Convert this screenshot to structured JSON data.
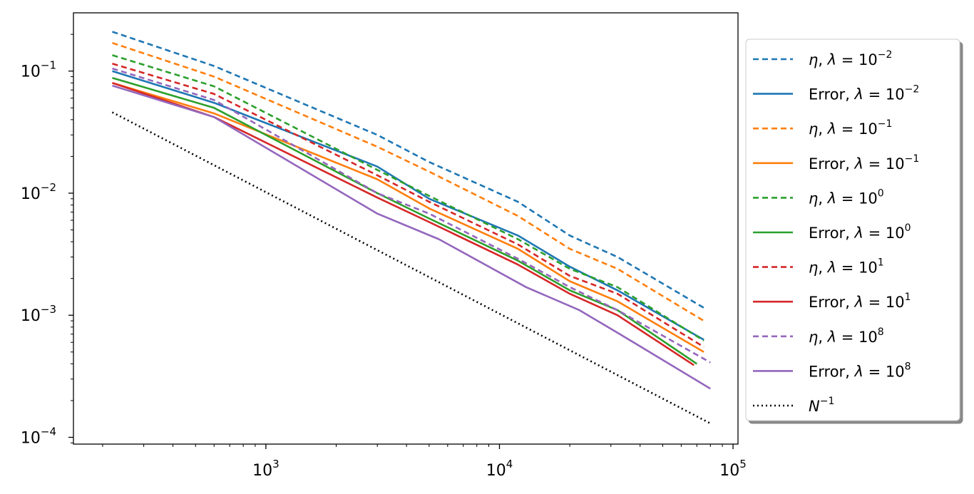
{
  "chart_data": {
    "type": "line",
    "title": "",
    "xlabel": "",
    "ylabel": "",
    "xscale": "log",
    "yscale": "log",
    "xlim": [
      150,
      105000
    ],
    "ylim": [
      8.8e-05,
      0.3
    ],
    "grid": false,
    "legend_position": "outside-right",
    "x_ticks": [
      {
        "value": 1000,
        "base": "10",
        "exp": "3"
      },
      {
        "value": 10000,
        "base": "10",
        "exp": "4"
      },
      {
        "value": 100000,
        "base": "10",
        "exp": "5"
      }
    ],
    "y_ticks": [
      {
        "value": 0.0001,
        "base": "10",
        "exp": "−4"
      },
      {
        "value": 0.001,
        "base": "10",
        "exp": "−3"
      },
      {
        "value": 0.01,
        "base": "10",
        "exp": "−2"
      },
      {
        "value": 0.1,
        "base": "10",
        "exp": "−1"
      }
    ],
    "series": [
      {
        "name": "η, λ = 10⁻²",
        "legend": {
          "prefix": "η",
          "exp": "−2"
        },
        "color": "#1f77b4",
        "style": "dashed",
        "x": [
          220,
          600,
          3000,
          5000,
          12000,
          20000,
          32000,
          75000
        ],
        "y": [
          0.21,
          0.11,
          0.03,
          0.018,
          0.0085,
          0.0045,
          0.003,
          0.00115
        ]
      },
      {
        "name": "Error, λ = 10⁻²",
        "legend": {
          "prefix": "Error",
          "exp": "−2"
        },
        "color": "#1f77b4",
        "style": "solid",
        "x": [
          220,
          600,
          3000,
          5000,
          12000,
          20000,
          32000,
          75000
        ],
        "y": [
          0.1,
          0.055,
          0.0165,
          0.009,
          0.0045,
          0.0025,
          0.0016,
          0.00063
        ]
      },
      {
        "name": "η, λ = 10⁻¹",
        "legend": {
          "prefix": "η",
          "exp": "−1"
        },
        "color": "#ff7f0e",
        "style": "dashed",
        "x": [
          220,
          600,
          3000,
          5000,
          12000,
          20000,
          32000,
          75000
        ],
        "y": [
          0.17,
          0.09,
          0.024,
          0.015,
          0.0065,
          0.0035,
          0.0024,
          0.0009
        ]
      },
      {
        "name": "Error, λ = 10⁻¹",
        "legend": {
          "prefix": "Error",
          "exp": "−1"
        },
        "color": "#ff7f0e",
        "style": "solid",
        "x": [
          220,
          600,
          3000,
          5000,
          12000,
          20000,
          32000,
          75000
        ],
        "y": [
          0.08,
          0.045,
          0.013,
          0.0075,
          0.0035,
          0.0019,
          0.0013,
          0.0005
        ]
      },
      {
        "name": "η, λ = 10⁰",
        "legend": {
          "prefix": "η",
          "exp": "0"
        },
        "color": "#2ca02c",
        "style": "dashed",
        "x": [
          220,
          600,
          3000,
          5000,
          12000,
          20000,
          32000,
          75000
        ],
        "y": [
          0.135,
          0.075,
          0.0155,
          0.0095,
          0.0042,
          0.0024,
          0.0017,
          0.00062
        ]
      },
      {
        "name": "Error, λ = 10⁰",
        "legend": {
          "prefix": "Error",
          "exp": "0"
        },
        "color": "#2ca02c",
        "style": "solid",
        "x": [
          220,
          600,
          3000,
          5000,
          12000,
          20000,
          32000,
          70000
        ],
        "y": [
          0.088,
          0.05,
          0.01,
          0.0062,
          0.0028,
          0.0016,
          0.0011,
          0.0004
        ]
      },
      {
        "name": "η, λ = 10¹",
        "legend": {
          "prefix": "η",
          "exp": "1"
        },
        "color": "#d62728",
        "style": "dashed",
        "x": [
          220,
          600,
          3000,
          5000,
          12000,
          20000,
          32000,
          75000
        ],
        "y": [
          0.115,
          0.065,
          0.014,
          0.0085,
          0.0038,
          0.0021,
          0.0015,
          0.00055
        ]
      },
      {
        "name": "Error, λ = 10¹",
        "legend": {
          "prefix": "Error",
          "exp": "1"
        },
        "color": "#d62728",
        "style": "solid",
        "x": [
          220,
          600,
          3000,
          5000,
          12000,
          20000,
          32000,
          68000
        ],
        "y": [
          0.08,
          0.042,
          0.0092,
          0.0058,
          0.0026,
          0.0015,
          0.001,
          0.00039
        ]
      },
      {
        "name": "η, λ = 10⁸",
        "legend": {
          "prefix": "η",
          "exp": "8"
        },
        "color": "#9467bd",
        "style": "dashed",
        "x": [
          220,
          600,
          3000,
          5000,
          12000,
          20000,
          32000,
          80000
        ],
        "y": [
          0.105,
          0.058,
          0.01,
          0.0068,
          0.0029,
          0.0017,
          0.0011,
          0.00041
        ]
      },
      {
        "name": "Error, λ = 10⁸",
        "legend": {
          "prefix": "Error",
          "exp": "8"
        },
        "color": "#9467bd",
        "style": "solid",
        "x": [
          220,
          600,
          3000,
          5500,
          13000,
          22000,
          32000,
          80000
        ],
        "y": [
          0.076,
          0.042,
          0.0068,
          0.0042,
          0.0017,
          0.0011,
          0.00072,
          0.00025
        ]
      },
      {
        "name": "N⁻¹",
        "legend": {
          "prefix": "N",
          "exp": "−1",
          "plain": true
        },
        "color": "#000000",
        "style": "dotted",
        "x": [
          220,
          80000
        ],
        "y": [
          0.046,
          0.00013
        ]
      }
    ]
  }
}
